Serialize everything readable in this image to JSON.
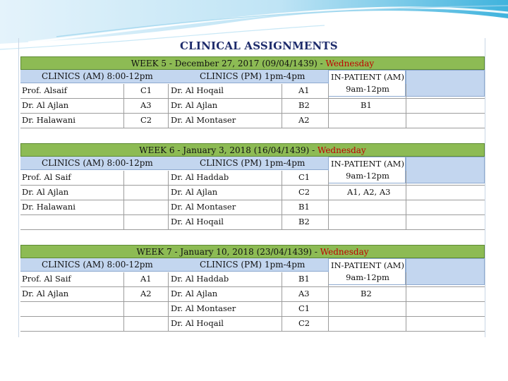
{
  "title": "CLINICAL ASSIGNMENTS",
  "colors": {
    "week_bar": "#8dbb54",
    "header_band": "#c3d6ef",
    "day_text": "#c00000",
    "title": "#1d2b6b"
  },
  "weeks": [
    {
      "label": "WEEK 5 - December 27, 2017 (09/04/1439) -",
      "day": "Wednesday",
      "am_header": "CLINICS (AM) 8:00-12pm",
      "pm_header": "CLINICS (PM) 1pm-4pm",
      "ip_header": "IN-PATIENT (AM)",
      "ip_time": "9am-12pm",
      "rows": [
        {
          "am_name": "Prof. Alsaif",
          "am_code": "C1",
          "pm_name": "Dr. Al Hoqail",
          "pm_code": "A1",
          "ip": ""
        },
        {
          "am_name": "Dr. Al Ajlan",
          "am_code": "A3",
          "pm_name": "Dr. Al Ajlan",
          "pm_code": "B2",
          "ip": "B1"
        },
        {
          "am_name": "Dr. Halawani",
          "am_code": "C2",
          "pm_name": "Dr. Al Montaser",
          "pm_code": "A2",
          "ip": ""
        }
      ]
    },
    {
      "label": "WEEK 6 - January 3, 2018 (16/04/1439) -",
      "day": "Wednesday",
      "am_header": "CLINICS (AM) 8:00-12pm",
      "pm_header": "CLINICS (PM) 1pm-4pm",
      "ip_header": "IN-PATIENT (AM)",
      "ip_time": "9am-12pm",
      "rows": [
        {
          "am_name": "Prof. Al Saif",
          "am_code": "",
          "pm_name": "Dr. Al Haddab",
          "pm_code": "C1",
          "ip": ""
        },
        {
          "am_name": "Dr. Al Ajlan",
          "am_code": "",
          "pm_name": "Dr. Al Ajlan",
          "pm_code": "C2",
          "ip": "A1, A2, A3"
        },
        {
          "am_name": "Dr. Halawani",
          "am_code": "",
          "pm_name": "Dr. Al Montaser",
          "pm_code": "B1",
          "ip": ""
        },
        {
          "am_name": "",
          "am_code": "",
          "pm_name": "Dr. Al Hoqail",
          "pm_code": "B2",
          "ip": ""
        }
      ]
    },
    {
      "label": "WEEK 7 - January 10, 2018 (23/04/1439) -",
      "day": "Wednesday",
      "am_header": "CLINICS (AM) 8:00-12pm",
      "pm_header": "CLINICS (PM) 1pm-4pm",
      "ip_header": "IN-PATIENT (AM)",
      "ip_time": "9am-12pm",
      "rows": [
        {
          "am_name": "Prof. Al Saif",
          "am_code": "A1",
          "pm_name": "Dr. Al Haddab",
          "pm_code": "B1",
          "ip": ""
        },
        {
          "am_name": "Dr. Al Ajlan",
          "am_code": "A2",
          "pm_name": "Dr. Al Ajlan",
          "pm_code": "A3",
          "ip": "B2"
        },
        {
          "am_name": "",
          "am_code": "",
          "pm_name": "Dr. Al Montaser",
          "pm_code": "C1",
          "ip": ""
        },
        {
          "am_name": "",
          "am_code": "",
          "pm_name": "Dr. Al Hoqail",
          "pm_code": "C2",
          "ip": ""
        }
      ]
    }
  ]
}
